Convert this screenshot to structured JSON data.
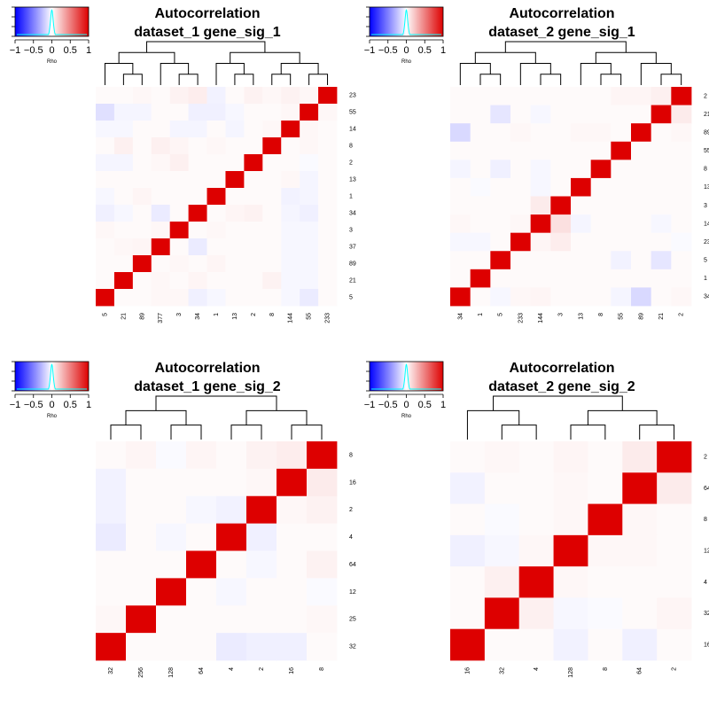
{
  "colors": {
    "negative": "#0000ff",
    "neutral": "#ffffff",
    "positive": "#dd0000",
    "density": "#00ffff",
    "line": "#000000"
  },
  "chart_data": [
    {
      "type": "heatmap",
      "title_line1": "Autocorrelation",
      "title_line2": "dataset_1 gene_sig_1",
      "color_key": {
        "label": "Rho",
        "ticks": [
          "−1",
          "−0.5",
          "0",
          "0.5",
          "1"
        ],
        "range": [
          -1,
          1
        ]
      },
      "col_labels": [
        "5",
        "21",
        "89",
        "377",
        "3",
        "34",
        "1",
        "13",
        "2",
        "8",
        "144",
        "55",
        "233"
      ],
      "row_labels": [
        "23",
        "55",
        "14",
        "8",
        "2",
        "13",
        "1",
        "34",
        "3",
        "37",
        "89",
        "21",
        "5"
      ],
      "rows": [
        [
          0.02,
          0.02,
          0.03,
          0.02,
          0.05,
          0.07,
          -0.05,
          0.02,
          0.05,
          0.03,
          0.05,
          0.03,
          1
        ],
        [
          -0.12,
          -0.04,
          -0.04,
          0.02,
          0.02,
          -0.06,
          -0.06,
          -0.03,
          0.02,
          0.02,
          0.03,
          1,
          0.03
        ],
        [
          -0.03,
          -0.03,
          0.02,
          0.02,
          -0.04,
          -0.04,
          0.02,
          -0.04,
          0.02,
          0.03,
          1,
          0.03,
          0.02
        ],
        [
          0.02,
          0.06,
          0.02,
          0.06,
          0.04,
          0.02,
          0.03,
          0.02,
          0.02,
          1,
          0.02,
          0.03,
          0.02
        ],
        [
          -0.04,
          -0.04,
          0.02,
          0.03,
          0.06,
          0.02,
          0.02,
          0.02,
          1,
          0.02,
          0.02,
          -0.02,
          0.02
        ],
        [
          0.02,
          0.02,
          0.02,
          0.02,
          0.02,
          0.02,
          0.02,
          1,
          0.02,
          0.02,
          0.03,
          -0.04,
          0.02
        ],
        [
          -0.03,
          0.02,
          0.04,
          0.02,
          0.02,
          0.02,
          1,
          0.02,
          0.02,
          0.02,
          -0.05,
          -0.04,
          0.02
        ],
        [
          -0.06,
          -0.03,
          0.02,
          -0.08,
          0.02,
          1,
          0.02,
          0.04,
          0.05,
          0.02,
          -0.04,
          -0.06,
          0.02
        ],
        [
          0.03,
          0.02,
          0.02,
          0.03,
          1,
          0.02,
          0.03,
          0.02,
          0.02,
          0.02,
          -0.03,
          -0.03,
          0.02
        ],
        [
          0.02,
          0.03,
          0.04,
          1,
          0.02,
          -0.08,
          0.02,
          0.02,
          0.02,
          0.02,
          -0.03,
          -0.03,
          0.02
        ],
        [
          0.02,
          0.02,
          1,
          0.02,
          0.03,
          0.02,
          0.04,
          0.02,
          0.02,
          0.02,
          -0.03,
          -0.03,
          0.02
        ],
        [
          0.02,
          1,
          0.02,
          0.03,
          0.02,
          0.04,
          0.02,
          0.02,
          0.02,
          0.05,
          -0.03,
          -0.03,
          0.02
        ],
        [
          1,
          0.02,
          0.02,
          0.03,
          0.03,
          -0.06,
          -0.03,
          0.02,
          0.02,
          0.02,
          -0.03,
          -0.08,
          0.02
        ]
      ]
    },
    {
      "type": "heatmap",
      "title_line1": "Autocorrelation",
      "title_line2": "dataset_2 gene_sig_1",
      "color_key": {
        "label": "Rho",
        "ticks": [
          "−1",
          "−0.5",
          "0",
          "0.5",
          "1"
        ],
        "range": [
          -1,
          1
        ]
      },
      "col_labels": [
        "34",
        "1",
        "5",
        "233",
        "144",
        "3",
        "13",
        "8",
        "55",
        "89",
        "21",
        "2"
      ],
      "row_labels": [
        "2",
        "21",
        "89",
        "55",
        "8",
        "13",
        "3",
        "14",
        "23",
        "5",
        "1",
        "34"
      ],
      "rows": [
        [
          0.02,
          0.02,
          0.02,
          0.02,
          0.02,
          0.02,
          0.02,
          0.02,
          0.04,
          0.04,
          0.06,
          1
        ],
        [
          0.02,
          0.02,
          -0.1,
          0.02,
          -0.03,
          0.02,
          0.02,
          0.02,
          0.02,
          0.02,
          1,
          0.08
        ],
        [
          -0.15,
          0.02,
          0.02,
          0.03,
          0.02,
          0.02,
          0.03,
          0.03,
          0.02,
          1,
          0.02,
          0.03
        ],
        [
          0.02,
          0.02,
          0.02,
          0.02,
          0.02,
          0.02,
          0.02,
          0.02,
          1,
          0.02,
          0.02,
          0.02
        ],
        [
          -0.04,
          0.02,
          -0.06,
          0.02,
          -0.03,
          0.02,
          0.02,
          1,
          0.02,
          0.02,
          0.02,
          0.02
        ],
        [
          0.02,
          -0.02,
          0.02,
          0.02,
          -0.03,
          0.02,
          1,
          0.02,
          0.02,
          0.02,
          0.02,
          0.02
        ],
        [
          0.02,
          0.02,
          0.02,
          0.02,
          0.08,
          1,
          0.02,
          0.02,
          0.02,
          0.02,
          0.02,
          0.02
        ],
        [
          0.03,
          0.02,
          0.02,
          0.03,
          1,
          0.12,
          -0.04,
          0.02,
          0.02,
          0.02,
          -0.03,
          0.02
        ],
        [
          -0.03,
          -0.03,
          0.02,
          1,
          0.04,
          0.07,
          0.02,
          0.02,
          0.02,
          0.02,
          0.02,
          -0.02
        ],
        [
          0.02,
          0.02,
          1,
          0.02,
          0.02,
          0.02,
          0.02,
          0.02,
          -0.05,
          0.02,
          -0.1,
          0.02
        ],
        [
          0.02,
          1,
          0.02,
          0.02,
          0.02,
          0.02,
          0.02,
          0.02,
          0.02,
          0.02,
          0.02,
          0.02
        ],
        [
          1,
          0.02,
          -0.03,
          0.03,
          0.04,
          0.02,
          0.02,
          0.02,
          -0.04,
          -0.15,
          0.02,
          0.03
        ]
      ]
    },
    {
      "type": "heatmap",
      "title_line1": "Autocorrelation",
      "title_line2": "dataset_1 gene_sig_2",
      "color_key": {
        "label": "Rho",
        "ticks": [
          "−1",
          "−0.5",
          "0",
          "0.5",
          "1"
        ],
        "range": [
          -1,
          1
        ]
      },
      "col_labels": [
        "32",
        "256",
        "128",
        "64",
        "4",
        "2",
        "16",
        "8"
      ],
      "row_labels": [
        "8",
        "16",
        "2",
        "4",
        "64",
        "12",
        "25",
        "32"
      ],
      "rows": [
        [
          0.02,
          0.04,
          -0.02,
          0.04,
          0.02,
          0.05,
          0.07,
          1
        ],
        [
          -0.05,
          0.02,
          0.02,
          0.02,
          0.02,
          0.03,
          1,
          0.08
        ],
        [
          -0.05,
          0.02,
          0.02,
          -0.03,
          -0.05,
          1,
          0.03,
          0.05
        ],
        [
          -0.08,
          0.02,
          -0.03,
          0.02,
          1,
          -0.06,
          0.02,
          0.02
        ],
        [
          0.02,
          0.02,
          0.02,
          1,
          0.02,
          -0.03,
          0.02,
          0.05
        ],
        [
          0.02,
          0.02,
          1,
          0.02,
          -0.03,
          0.02,
          0.02,
          -0.02
        ],
        [
          0.03,
          1,
          0.02,
          0.02,
          0.02,
          0.02,
          0.02,
          0.03
        ],
        [
          1,
          0.02,
          0.02,
          0.02,
          -0.08,
          -0.06,
          -0.06,
          0.02
        ]
      ]
    },
    {
      "type": "heatmap",
      "title_line1": "Autocorrelation",
      "title_line2": "dataset_2 gene_sig_2",
      "color_key": {
        "label": "Rho",
        "ticks": [
          "−1",
          "−0.5",
          "0",
          "0.5",
          "1"
        ],
        "range": [
          -1,
          1
        ]
      },
      "col_labels": [
        "16",
        "32",
        "4",
        "128",
        "8",
        "64",
        "2"
      ],
      "row_labels": [
        "2",
        "64",
        "8",
        "12",
        "4",
        "32",
        "16"
      ],
      "rows": [
        [
          0.02,
          0.03,
          0.02,
          0.04,
          0.02,
          0.08,
          1
        ],
        [
          -0.05,
          0.02,
          0.02,
          0.03,
          0.02,
          1,
          0.08
        ],
        [
          0.02,
          -0.02,
          0.02,
          0.03,
          1,
          0.03,
          0.02
        ],
        [
          -0.06,
          -0.03,
          0.03,
          1,
          0.03,
          0.03,
          0.02
        ],
        [
          0.02,
          0.06,
          1,
          0.03,
          0.02,
          0.02,
          0.02
        ],
        [
          0.02,
          1,
          0.06,
          -0.03,
          -0.02,
          0.02,
          0.04
        ],
        [
          1,
          0.02,
          0.02,
          -0.05,
          0.02,
          -0.06,
          0.02
        ]
      ]
    }
  ]
}
